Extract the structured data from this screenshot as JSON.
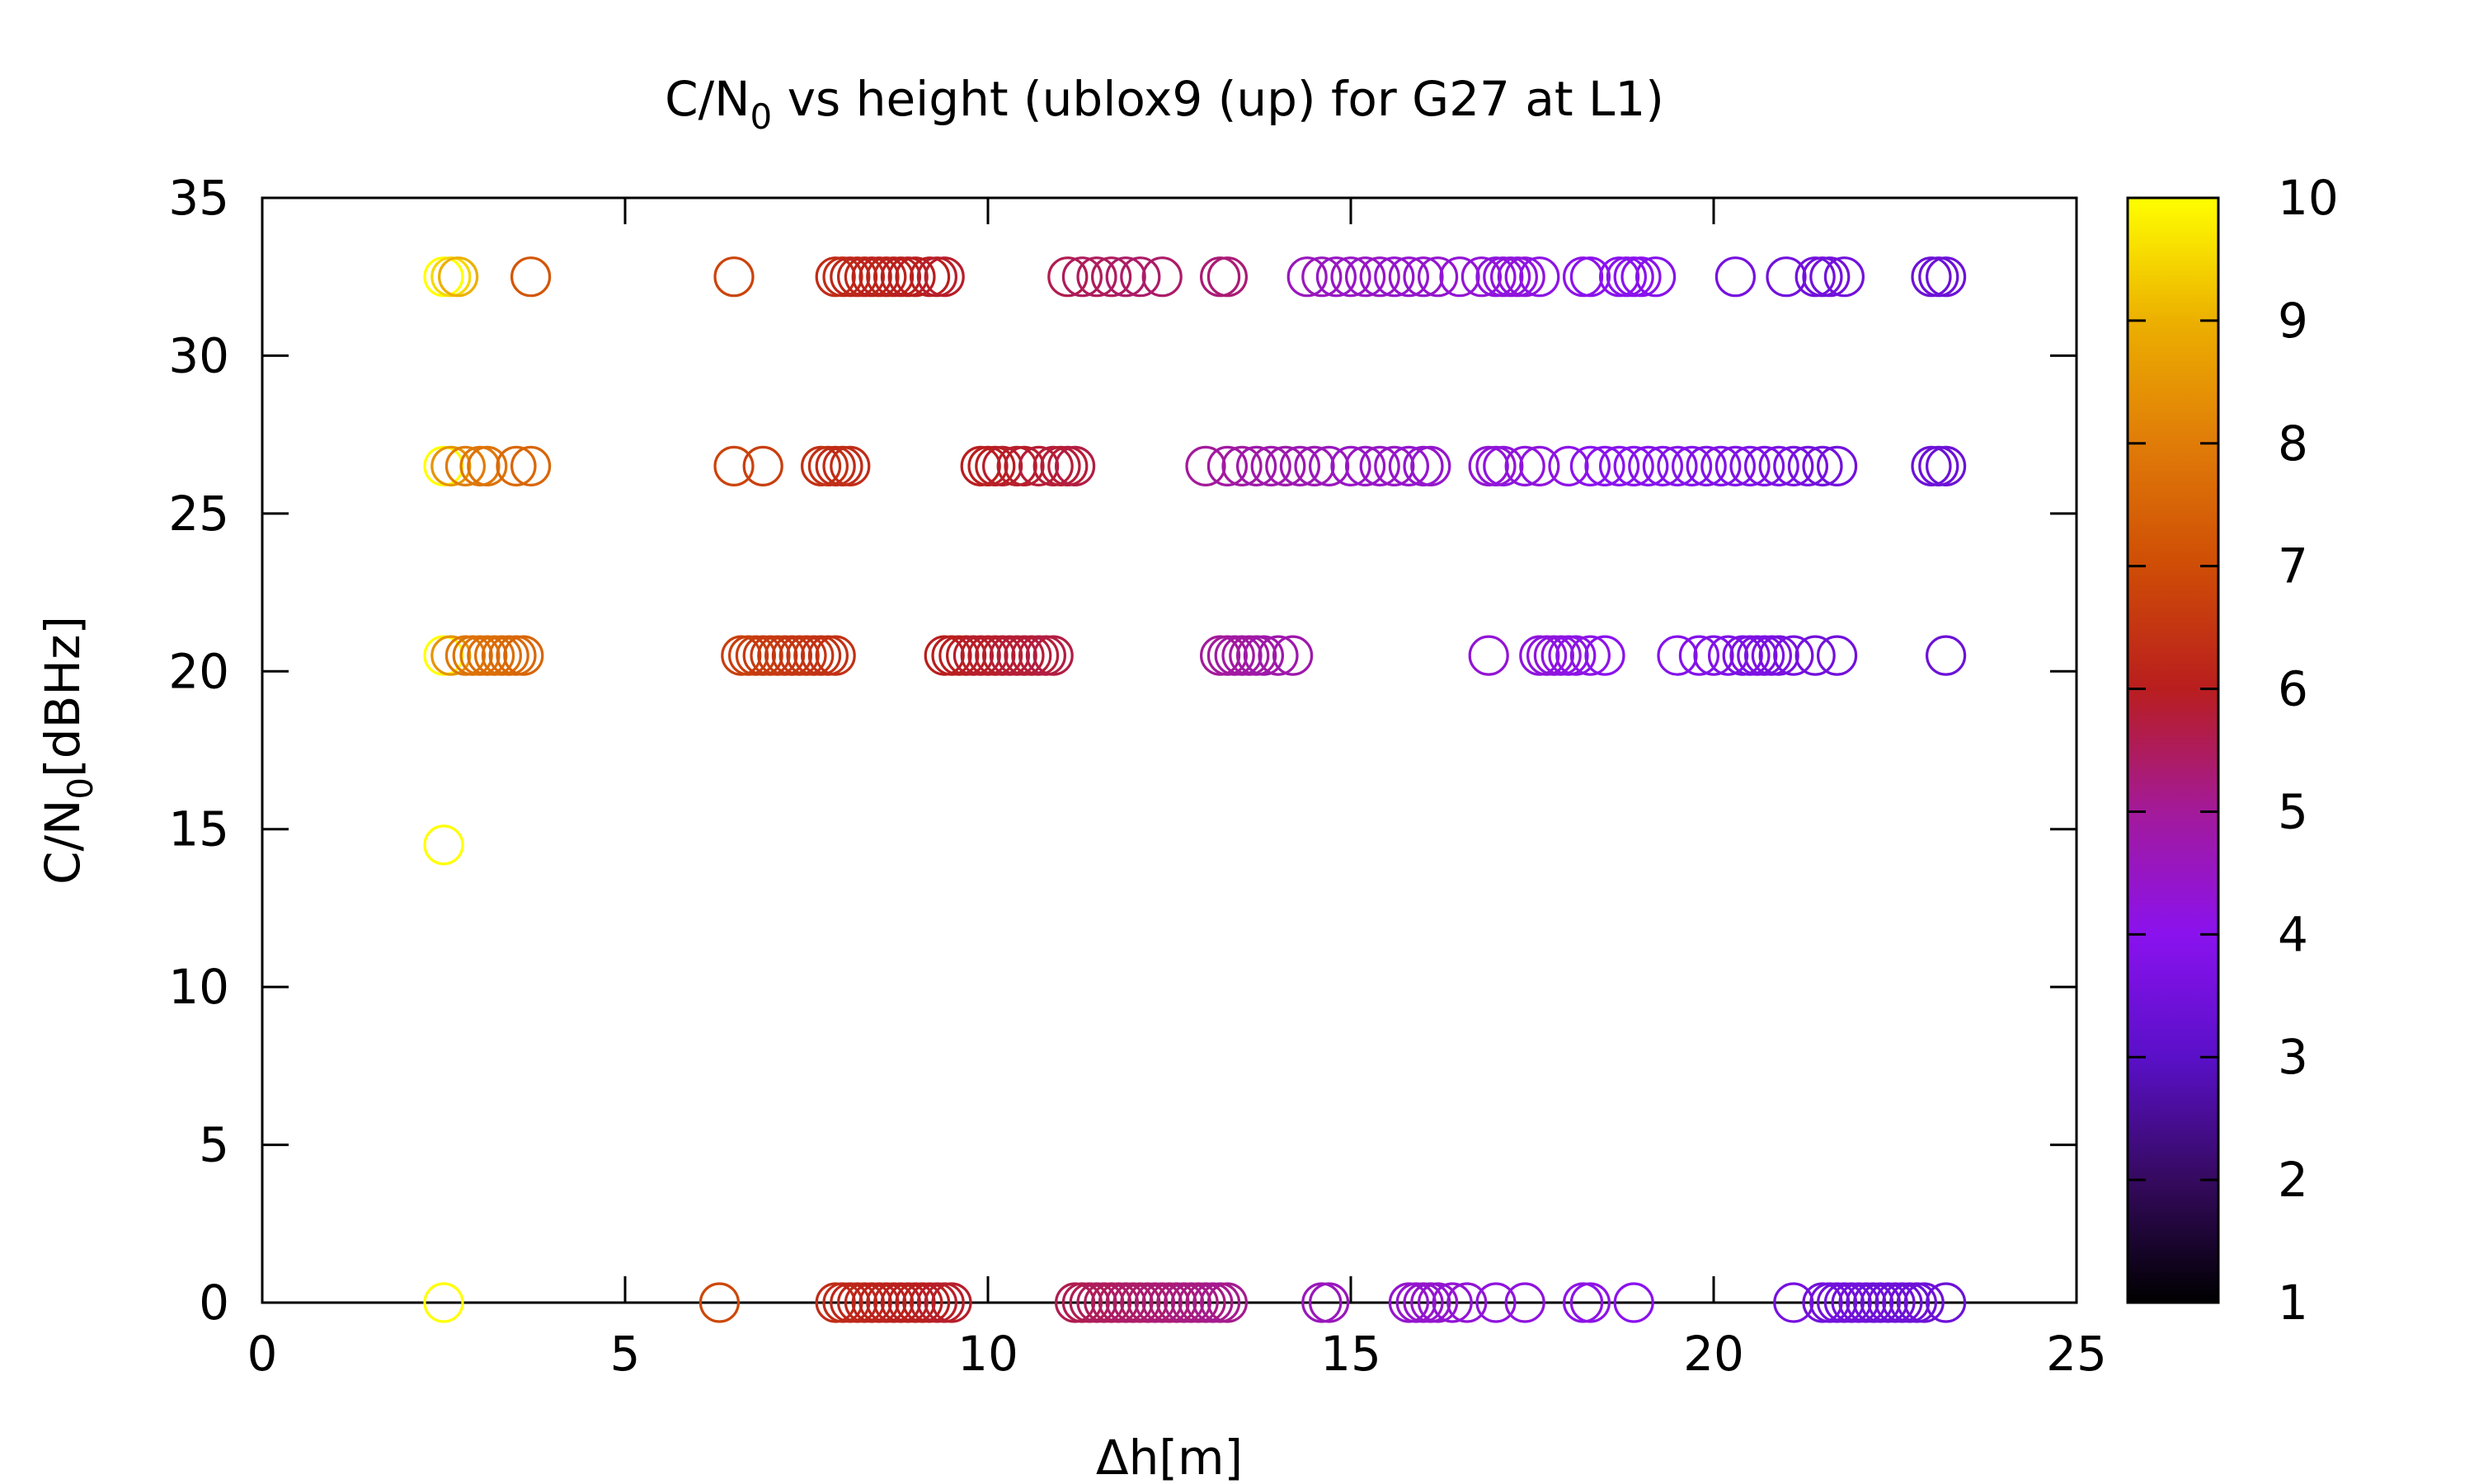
{
  "chart_data": {
    "type": "scatter",
    "title_main": "C/N",
    "title_sub": "0",
    "title_rest": " vs height (ublox9 (up) for G27 at L1)",
    "xlabel": "Δh[m]",
    "ylabel_main": "C/N",
    "ylabel_sub": "0",
    "ylabel_rest": "[dBHz]",
    "xlim": [
      0,
      25
    ],
    "ylim": [
      0,
      35
    ],
    "xticks": [
      "0",
      "5",
      "10",
      "15",
      "20",
      "25"
    ],
    "yticks": [
      "0",
      "5",
      "10",
      "15",
      "20",
      "25",
      "30",
      "35"
    ],
    "colorbar": {
      "range": [
        1,
        10
      ],
      "ticks": [
        "1",
        "2",
        "3",
        "4",
        "5",
        "6",
        "7",
        "8",
        "9",
        "10"
      ],
      "palette": "black-purple-red-orange-yellow"
    },
    "grid": false,
    "marker": "open-circle",
    "groups": [
      {
        "y": 32.5,
        "xs": [
          2.5,
          2.6,
          2.7,
          3.7,
          6.5,
          7.9,
          8.0,
          8.1,
          8.2,
          8.3,
          8.4,
          8.5,
          8.6,
          8.7,
          8.8,
          8.9,
          9.0,
          9.2,
          9.3,
          9.4,
          11.1,
          11.3,
          11.5,
          11.7,
          11.9,
          12.1,
          12.4,
          13.2,
          13.3,
          14.4,
          14.6,
          14.8,
          15.0,
          15.2,
          15.4,
          15.6,
          15.8,
          16.0,
          16.2,
          16.5,
          16.8,
          17.0,
          17.1,
          17.2,
          17.3,
          17.4,
          17.6,
          18.2,
          18.3,
          18.7,
          18.8,
          18.9,
          19.0,
          19.2,
          20.3,
          21.0,
          21.4,
          21.5,
          21.6,
          21.8,
          23.0,
          23.1,
          23.2
        ],
        "cs": [
          10,
          9.5,
          9,
          7.2,
          6.8,
          6.3,
          6.3,
          6.2,
          6.2,
          6.2,
          6.1,
          6.1,
          6.1,
          6.1,
          6.0,
          6.0,
          6.0,
          6.0,
          5.9,
          5.9,
          5.6,
          5.5,
          5.5,
          5.5,
          5.4,
          5.4,
          5.4,
          5.3,
          5.3,
          4.6,
          4.6,
          4.5,
          4.5,
          4.5,
          4.5,
          4.4,
          4.4,
          4.4,
          4.4,
          4.3,
          4.3,
          4.2,
          4.2,
          4.2,
          4.2,
          4.2,
          4.1,
          4.1,
          4.0,
          4.0,
          4.0,
          4.0,
          4.0,
          3.9,
          3.6,
          3.5,
          3.5,
          3.5,
          3.5,
          3.5,
          3.4,
          3.4,
          3.4
        ]
      },
      {
        "y": 26.5,
        "xs": [
          2.5,
          2.6,
          2.8,
          3.0,
          3.1,
          3.5,
          3.7,
          6.5,
          6.9,
          7.7,
          7.8,
          7.9,
          8.0,
          8.1,
          9.9,
          10.0,
          10.1,
          10.2,
          10.4,
          10.5,
          10.7,
          10.9,
          11.0,
          11.1,
          11.2,
          13.0,
          13.3,
          13.5,
          13.7,
          13.9,
          14.1,
          14.3,
          14.5,
          14.7,
          15.0,
          15.2,
          15.4,
          15.6,
          15.8,
          16.0,
          16.1,
          16.9,
          17.0,
          17.1,
          17.4,
          17.6,
          18.0,
          18.3,
          18.5,
          18.7,
          18.9,
          19.1,
          19.3,
          19.5,
          19.7,
          19.9,
          20.1,
          20.3,
          20.5,
          20.7,
          20.9,
          21.1,
          21.3,
          21.5,
          21.7,
          23.0,
          23.1,
          23.2
        ],
        "cs": [
          10,
          8.5,
          8,
          7.9,
          7.8,
          7.6,
          7.5,
          6.8,
          6.7,
          6.4,
          6.4,
          6.3,
          6.3,
          6.3,
          6.0,
          6.0,
          6.0,
          5.9,
          5.9,
          5.9,
          5.8,
          5.8,
          5.8,
          5.8,
          5.7,
          5.0,
          4.9,
          4.9,
          4.8,
          4.8,
          4.8,
          4.7,
          4.7,
          4.6,
          4.5,
          4.5,
          4.5,
          4.5,
          4.4,
          4.4,
          4.4,
          4.3,
          4.3,
          4.2,
          4.2,
          4.2,
          4.1,
          4.0,
          4.0,
          4.0,
          4.0,
          3.9,
          3.9,
          3.9,
          3.9,
          3.8,
          3.8,
          3.8,
          3.8,
          3.7,
          3.7,
          3.6,
          3.6,
          3.5,
          3.5,
          3.4,
          3.4,
          3.4
        ]
      },
      {
        "y": 20.5,
        "xs": [
          2.5,
          2.6,
          2.8,
          2.9,
          3.0,
          3.1,
          3.2,
          3.3,
          3.4,
          3.5,
          3.6,
          6.6,
          6.7,
          6.8,
          6.9,
          7.0,
          7.1,
          7.2,
          7.3,
          7.4,
          7.5,
          7.6,
          7.7,
          7.8,
          7.9,
          9.4,
          9.5,
          9.6,
          9.7,
          9.8,
          9.9,
          10.0,
          10.1,
          10.2,
          10.3,
          10.4,
          10.5,
          10.6,
          10.7,
          10.8,
          10.9,
          13.2,
          13.3,
          13.4,
          13.5,
          13.6,
          13.7,
          13.8,
          14.0,
          14.2,
          16.9,
          17.6,
          17.7,
          17.8,
          17.9,
          18.0,
          18.1,
          18.3,
          18.5,
          19.5,
          19.8,
          20.0,
          20.2,
          20.4,
          20.5,
          20.6,
          20.7,
          20.8,
          20.9,
          21.1,
          21.4,
          21.7,
          23.2
        ],
        "cs": [
          10,
          8.5,
          7.9,
          7.8,
          7.8,
          7.7,
          7.7,
          7.7,
          7.6,
          7.6,
          7.5,
          6.7,
          6.7,
          6.7,
          6.6,
          6.6,
          6.6,
          6.6,
          6.5,
          6.5,
          6.5,
          6.5,
          6.4,
          6.4,
          6.4,
          6.0,
          6.0,
          6.0,
          6.0,
          5.9,
          5.9,
          5.9,
          5.9,
          5.9,
          5.8,
          5.8,
          5.8,
          5.8,
          5.8,
          5.7,
          5.7,
          5.0,
          5.0,
          4.9,
          4.9,
          4.9,
          4.9,
          4.8,
          4.8,
          4.8,
          4.3,
          4.2,
          4.2,
          4.2,
          4.2,
          4.1,
          4.1,
          4.1,
          4.0,
          3.9,
          3.9,
          3.8,
          3.8,
          3.7,
          3.7,
          3.7,
          3.7,
          3.7,
          3.6,
          3.6,
          3.5,
          3.5,
          3.4
        ]
      },
      {
        "y": 14.5,
        "xs": [
          2.5
        ],
        "cs": [
          10
        ]
      },
      {
        "y": 0,
        "xs": [
          2.5,
          6.3,
          7.9,
          8.0,
          8.1,
          8.2,
          8.3,
          8.4,
          8.5,
          8.6,
          8.7,
          8.8,
          8.9,
          9.0,
          9.1,
          9.2,
          9.3,
          9.4,
          9.5,
          11.2,
          11.3,
          11.4,
          11.5,
          11.6,
          11.7,
          11.8,
          11.9,
          12.0,
          12.1,
          12.2,
          12.3,
          12.4,
          12.5,
          12.6,
          12.7,
          12.8,
          12.9,
          13.0,
          13.1,
          13.2,
          13.3,
          14.6,
          14.7,
          15.8,
          15.9,
          16.0,
          16.1,
          16.2,
          16.4,
          16.6,
          17.0,
          17.4,
          18.2,
          18.3,
          18.9,
          21.1,
          21.5,
          21.6,
          21.7,
          21.8,
          21.9,
          22.0,
          22.1,
          22.2,
          22.3,
          22.4,
          22.5,
          22.6,
          22.7,
          22.8,
          22.9,
          23.2
        ],
        "cs": [
          10,
          6.9,
          6.3,
          6.3,
          6.2,
          6.2,
          6.2,
          6.1,
          6.1,
          6.1,
          6.1,
          6.0,
          6.0,
          6.0,
          6.0,
          6.0,
          5.9,
          5.9,
          5.9,
          5.6,
          5.6,
          5.6,
          5.5,
          5.5,
          5.5,
          5.5,
          5.4,
          5.4,
          5.4,
          5.4,
          5.3,
          5.3,
          5.3,
          5.3,
          5.2,
          5.2,
          5.2,
          5.2,
          5.1,
          5.1,
          5.1,
          4.6,
          4.6,
          4.4,
          4.4,
          4.4,
          4.4,
          4.4,
          4.3,
          4.3,
          4.2,
          4.2,
          4.1,
          4.1,
          4.0,
          3.6,
          3.5,
          3.5,
          3.5,
          3.5,
          3.5,
          3.5,
          3.5,
          3.4,
          3.4,
          3.4,
          3.4,
          3.4,
          3.4,
          3.4,
          3.4,
          3.4
        ]
      }
    ]
  }
}
